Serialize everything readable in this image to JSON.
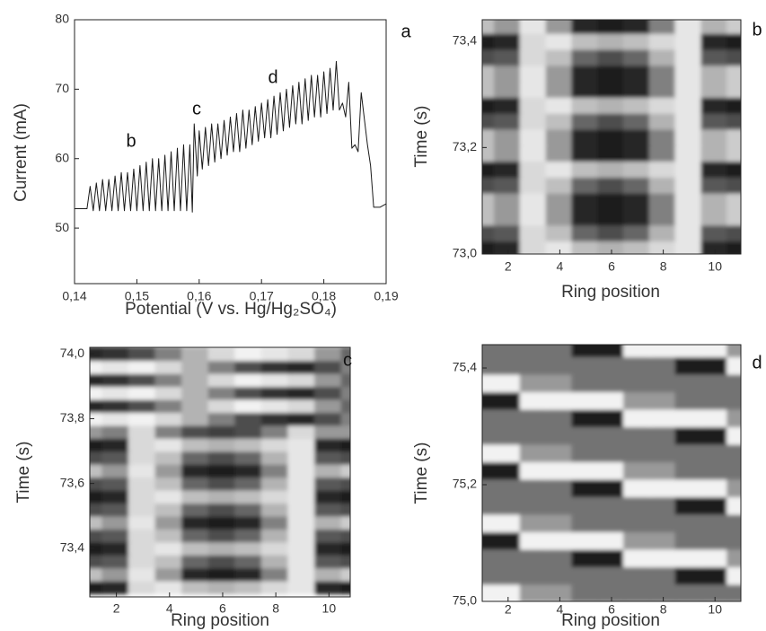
{
  "chart_data": [
    {
      "type": "line",
      "panel_label": "a",
      "xlabel": "Potential (V vs. Hg/Hg₂SO₄)",
      "ylabel": "Current (mA)",
      "annotations": [
        "b",
        "c",
        "d"
      ],
      "color": "#1a1a1a",
      "xlim": [
        0.14,
        0.19
      ],
      "ylim": [
        42,
        80
      ],
      "xticks": [
        {
          "value": 0.14,
          "label": "0,14"
        },
        {
          "value": 0.15,
          "label": "0,15"
        },
        {
          "value": 0.16,
          "label": "0,16"
        },
        {
          "value": 0.17,
          "label": "0,17"
        },
        {
          "value": 0.18,
          "label": "0,18"
        },
        {
          "value": 0.19,
          "label": "0,19"
        }
      ],
      "yticks": [
        50,
        60,
        70,
        80
      ],
      "x": [
        0.14,
        0.142,
        0.1425,
        0.143,
        0.1435,
        0.144,
        0.1445,
        0.145,
        0.1455,
        0.146,
        0.1465,
        0.147,
        0.1475,
        0.148,
        0.1485,
        0.149,
        0.1495,
        0.15,
        0.1505,
        0.151,
        0.1515,
        0.152,
        0.1525,
        0.153,
        0.1535,
        0.154,
        0.1545,
        0.155,
        0.1555,
        0.156,
        0.1565,
        0.157,
        0.1575,
        0.158,
        0.1585,
        0.1589,
        0.1592,
        0.1597,
        0.16,
        0.1605,
        0.161,
        0.1615,
        0.162,
        0.1625,
        0.163,
        0.1635,
        0.164,
        0.1645,
        0.165,
        0.1655,
        0.166,
        0.1665,
        0.167,
        0.1675,
        0.168,
        0.1685,
        0.169,
        0.1695,
        0.17,
        0.1705,
        0.171,
        0.1715,
        0.172,
        0.1725,
        0.173,
        0.1735,
        0.174,
        0.1745,
        0.175,
        0.1755,
        0.176,
        0.1765,
        0.177,
        0.1775,
        0.178,
        0.1785,
        0.179,
        0.1795,
        0.18,
        0.1805,
        0.181,
        0.1815,
        0.182,
        0.1825,
        0.183,
        0.1835,
        0.184,
        0.1845,
        0.185,
        0.1855,
        0.186,
        0.187,
        0.1875,
        0.188,
        0.189,
        0.19
      ],
      "values": [
        52.8,
        52.8,
        56,
        52.5,
        56.5,
        52.5,
        57,
        52.5,
        57,
        52.5,
        57.5,
        52.5,
        58,
        52.5,
        58,
        52.5,
        58.5,
        52.5,
        59,
        52.5,
        59.5,
        52.5,
        60,
        52.5,
        60,
        52.5,
        60.5,
        52.5,
        61,
        52.5,
        61.5,
        52.5,
        62,
        52.5,
        62,
        52.3,
        65,
        57.5,
        64,
        58.5,
        64.5,
        59,
        65,
        59.5,
        65,
        60,
        65.5,
        60.5,
        66,
        61,
        66.5,
        61,
        67,
        61.5,
        67,
        62,
        67.5,
        62.5,
        68,
        63,
        68.5,
        63,
        69,
        63.5,
        69.5,
        64,
        70,
        64.5,
        70.5,
        65,
        71,
        65,
        71.5,
        65.5,
        72,
        66,
        72,
        66,
        72.5,
        66.5,
        73,
        67,
        74,
        67,
        68,
        66,
        71,
        61.5,
        62,
        61,
        69.5,
        62,
        59,
        53,
        53,
        53.5
      ]
    },
    {
      "type": "heatmap",
      "panel_label": "b",
      "xlabel": "Ring position",
      "ylabel": "Time (s)",
      "colormap": "gray",
      "xlim": [
        1,
        11
      ],
      "ylim": [
        73.0,
        73.44
      ],
      "xticks": [
        2,
        4,
        6,
        8,
        10
      ],
      "yticks": [
        {
          "value": 73.0,
          "label": "73,0"
        },
        {
          "value": 73.2,
          "label": "73,2"
        },
        {
          "value": 73.4,
          "label": "73,4"
        }
      ],
      "x": [
        1,
        2,
        3,
        4,
        5,
        6,
        7,
        8,
        9,
        10,
        11
      ],
      "y": [
        73.01,
        73.04,
        73.07,
        73.1,
        73.13,
        73.16,
        73.19,
        73.22,
        73.25,
        73.28,
        73.31,
        73.34,
        73.37,
        73.4,
        73.43
      ],
      "z": [
        [
          0.1,
          0.15,
          0.85,
          0.9,
          0.75,
          0.7,
          0.75,
          0.85,
          0.9,
          0.15,
          0.1
        ],
        [
          0.3,
          0.35,
          0.85,
          0.75,
          0.4,
          0.3,
          0.4,
          0.7,
          0.9,
          0.35,
          0.3
        ],
        [
          0.75,
          0.6,
          0.9,
          0.6,
          0.15,
          0.1,
          0.15,
          0.5,
          0.9,
          0.7,
          0.8
        ],
        [
          0.75,
          0.6,
          0.9,
          0.6,
          0.15,
          0.1,
          0.15,
          0.5,
          0.9,
          0.7,
          0.8
        ],
        [
          0.3,
          0.35,
          0.85,
          0.75,
          0.4,
          0.3,
          0.4,
          0.7,
          0.9,
          0.35,
          0.3
        ],
        [
          0.1,
          0.15,
          0.85,
          0.9,
          0.75,
          0.7,
          0.75,
          0.85,
          0.9,
          0.15,
          0.1
        ],
        [
          0.75,
          0.6,
          0.9,
          0.6,
          0.15,
          0.1,
          0.15,
          0.5,
          0.9,
          0.7,
          0.8
        ],
        [
          0.75,
          0.6,
          0.9,
          0.6,
          0.15,
          0.1,
          0.15,
          0.5,
          0.9,
          0.7,
          0.8
        ],
        [
          0.3,
          0.35,
          0.85,
          0.75,
          0.4,
          0.3,
          0.4,
          0.7,
          0.9,
          0.35,
          0.3
        ],
        [
          0.1,
          0.15,
          0.85,
          0.9,
          0.75,
          0.7,
          0.75,
          0.85,
          0.9,
          0.15,
          0.1
        ],
        [
          0.75,
          0.6,
          0.9,
          0.6,
          0.15,
          0.1,
          0.15,
          0.5,
          0.9,
          0.7,
          0.8
        ],
        [
          0.75,
          0.6,
          0.9,
          0.6,
          0.15,
          0.1,
          0.15,
          0.5,
          0.9,
          0.7,
          0.8
        ],
        [
          0.3,
          0.35,
          0.85,
          0.75,
          0.4,
          0.3,
          0.4,
          0.7,
          0.9,
          0.35,
          0.3
        ],
        [
          0.1,
          0.15,
          0.85,
          0.9,
          0.75,
          0.7,
          0.75,
          0.85,
          0.9,
          0.15,
          0.1
        ],
        [
          0.75,
          0.6,
          0.9,
          0.6,
          0.15,
          0.1,
          0.15,
          0.5,
          0.9,
          0.7,
          0.8
        ]
      ]
    },
    {
      "type": "heatmap",
      "panel_label": "c",
      "xlabel": "Ring position",
      "ylabel": "Time (s)",
      "colormap": "gray",
      "xlim": [
        1,
        10.8
      ],
      "ylim": [
        73.25,
        74.02
      ],
      "xticks": [
        2,
        4,
        6,
        8,
        10
      ],
      "yticks": [
        {
          "value": 73.4,
          "label": "73,4"
        },
        {
          "value": 73.6,
          "label": "73,6"
        },
        {
          "value": 73.8,
          "label": "73,8"
        },
        {
          "value": 74.0,
          "label": "74,0"
        }
      ],
      "x": [
        1,
        2,
        3,
        4,
        5,
        6,
        7,
        8,
        9,
        10,
        11
      ],
      "y": [
        73.28,
        73.32,
        73.36,
        73.4,
        73.44,
        73.48,
        73.52,
        73.56,
        73.6,
        73.64,
        73.68,
        73.72,
        73.76,
        73.8,
        73.84,
        73.88,
        73.92,
        73.96,
        74.0
      ],
      "z": [
        [
          0.1,
          0.15,
          0.85,
          0.9,
          0.75,
          0.7,
          0.75,
          0.85,
          0.9,
          0.15,
          0.1
        ],
        [
          0.75,
          0.6,
          0.9,
          0.6,
          0.15,
          0.1,
          0.15,
          0.5,
          0.9,
          0.7,
          0.8
        ],
        [
          0.3,
          0.35,
          0.85,
          0.75,
          0.4,
          0.3,
          0.4,
          0.7,
          0.9,
          0.35,
          0.3
        ],
        [
          0.1,
          0.15,
          0.85,
          0.9,
          0.75,
          0.7,
          0.75,
          0.85,
          0.9,
          0.15,
          0.1
        ],
        [
          0.3,
          0.35,
          0.85,
          0.75,
          0.4,
          0.3,
          0.4,
          0.7,
          0.9,
          0.35,
          0.3
        ],
        [
          0.75,
          0.6,
          0.9,
          0.6,
          0.15,
          0.1,
          0.15,
          0.5,
          0.9,
          0.7,
          0.8
        ],
        [
          0.3,
          0.35,
          0.85,
          0.75,
          0.4,
          0.3,
          0.4,
          0.7,
          0.9,
          0.35,
          0.3
        ],
        [
          0.1,
          0.15,
          0.85,
          0.9,
          0.75,
          0.7,
          0.75,
          0.85,
          0.9,
          0.15,
          0.1
        ],
        [
          0.3,
          0.35,
          0.85,
          0.75,
          0.4,
          0.3,
          0.4,
          0.7,
          0.9,
          0.35,
          0.3
        ],
        [
          0.75,
          0.6,
          0.9,
          0.6,
          0.15,
          0.1,
          0.15,
          0.5,
          0.9,
          0.7,
          0.8
        ],
        [
          0.3,
          0.35,
          0.85,
          0.75,
          0.4,
          0.3,
          0.4,
          0.7,
          0.9,
          0.35,
          0.3
        ],
        [
          0.1,
          0.15,
          0.85,
          0.9,
          0.75,
          0.7,
          0.75,
          0.85,
          0.9,
          0.15,
          0.1
        ],
        [
          0.6,
          0.5,
          0.85,
          0.5,
          0.3,
          0.25,
          0.3,
          0.5,
          0.85,
          0.6,
          0.6
        ],
        [
          0.95,
          0.9,
          0.95,
          0.85,
          0.7,
          0.5,
          0.3,
          0.2,
          0.15,
          0.3,
          0.5
        ],
        [
          0.15,
          0.2,
          0.3,
          0.5,
          0.7,
          0.85,
          0.95,
          0.9,
          0.85,
          0.6,
          0.4
        ],
        [
          0.95,
          0.9,
          0.95,
          0.85,
          0.7,
          0.5,
          0.3,
          0.2,
          0.15,
          0.3,
          0.5
        ],
        [
          0.15,
          0.2,
          0.3,
          0.5,
          0.7,
          0.85,
          0.95,
          0.9,
          0.85,
          0.6,
          0.4
        ],
        [
          0.95,
          0.9,
          0.95,
          0.85,
          0.7,
          0.5,
          0.3,
          0.2,
          0.15,
          0.3,
          0.5
        ],
        [
          0.15,
          0.2,
          0.3,
          0.5,
          0.7,
          0.85,
          0.95,
          0.9,
          0.85,
          0.6,
          0.4
        ]
      ]
    },
    {
      "type": "heatmap",
      "panel_label": "d",
      "xlabel": "Ring position",
      "ylabel": "Time (s)",
      "colormap": "gray",
      "xlim": [
        1,
        11
      ],
      "ylim": [
        75.0,
        75.44
      ],
      "xticks": [
        2,
        4,
        6,
        8,
        10
      ],
      "yticks": [
        {
          "value": 75.0,
          "label": "75,0"
        },
        {
          "value": 75.2,
          "label": "75,2"
        },
        {
          "value": 75.4,
          "label": "75,4"
        }
      ],
      "x": [
        1,
        2,
        3,
        4,
        5,
        6,
        7,
        8,
        9,
        10,
        11
      ],
      "y": [
        75.015,
        75.045,
        75.075,
        75.105,
        75.135,
        75.165,
        75.195,
        75.225,
        75.255,
        75.285,
        75.315,
        75.345,
        75.375,
        75.405,
        75.435
      ],
      "z": [
        [
          0.95,
          0.95,
          0.6,
          0.6,
          0.45,
          0.45,
          0.45,
          0.45,
          0.45,
          0.45,
          0.45
        ],
        [
          0.45,
          0.45,
          0.45,
          0.45,
          0.45,
          0.45,
          0.45,
          0.45,
          0.12,
          0.12,
          0.95
        ],
        [
          0.45,
          0.45,
          0.45,
          0.45,
          0.12,
          0.12,
          0.95,
          0.95,
          0.95,
          0.95,
          0.6
        ],
        [
          0.12,
          0.12,
          0.95,
          0.95,
          0.95,
          0.95,
          0.6,
          0.6,
          0.45,
          0.45,
          0.45
        ],
        [
          0.95,
          0.95,
          0.6,
          0.6,
          0.45,
          0.45,
          0.45,
          0.45,
          0.45,
          0.45,
          0.45
        ],
        [
          0.45,
          0.45,
          0.45,
          0.45,
          0.45,
          0.45,
          0.45,
          0.45,
          0.12,
          0.12,
          0.95
        ],
        [
          0.45,
          0.45,
          0.45,
          0.45,
          0.12,
          0.12,
          0.95,
          0.95,
          0.95,
          0.95,
          0.6
        ],
        [
          0.12,
          0.12,
          0.95,
          0.95,
          0.95,
          0.95,
          0.6,
          0.6,
          0.45,
          0.45,
          0.45
        ],
        [
          0.95,
          0.95,
          0.6,
          0.6,
          0.45,
          0.45,
          0.45,
          0.45,
          0.45,
          0.45,
          0.45
        ],
        [
          0.45,
          0.45,
          0.45,
          0.45,
          0.45,
          0.45,
          0.45,
          0.45,
          0.12,
          0.12,
          0.95
        ],
        [
          0.45,
          0.45,
          0.45,
          0.45,
          0.12,
          0.12,
          0.95,
          0.95,
          0.95,
          0.95,
          0.6
        ],
        [
          0.12,
          0.12,
          0.95,
          0.95,
          0.95,
          0.95,
          0.6,
          0.6,
          0.45,
          0.45,
          0.45
        ],
        [
          0.95,
          0.95,
          0.6,
          0.6,
          0.45,
          0.45,
          0.45,
          0.45,
          0.45,
          0.45,
          0.45
        ],
        [
          0.45,
          0.45,
          0.45,
          0.45,
          0.45,
          0.45,
          0.45,
          0.45,
          0.12,
          0.12,
          0.95
        ],
        [
          0.45,
          0.45,
          0.45,
          0.45,
          0.12,
          0.12,
          0.95,
          0.95,
          0.95,
          0.95,
          0.6
        ]
      ]
    }
  ]
}
